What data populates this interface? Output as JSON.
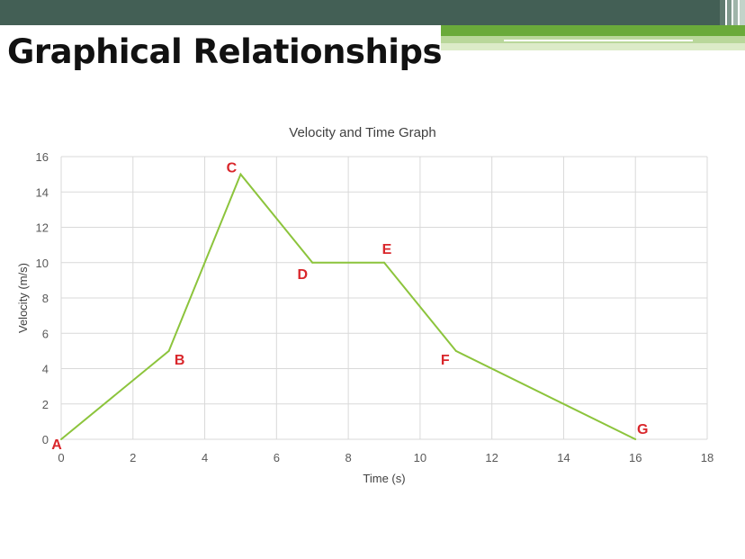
{
  "slide": {
    "title": "Graphical Relationships",
    "colors": {
      "band_dark": "#435f55",
      "band_green": "#6aaa3a",
      "band_light": "#b9d79a",
      "band_pale": "#dcebc8"
    }
  },
  "chart_data": {
    "type": "line",
    "title": "Velocity and Time Graph",
    "xlabel": "Time (s)",
    "ylabel": "Velocity (m/s)",
    "xlim": [
      0,
      18
    ],
    "ylim": [
      0,
      16
    ],
    "xticks": [
      0,
      2,
      4,
      6,
      8,
      10,
      12,
      14,
      16,
      18
    ],
    "yticks": [
      0,
      2,
      4,
      6,
      8,
      10,
      12,
      14,
      16
    ],
    "grid": true,
    "line_color": "#8cc43c",
    "label_color": "#d9262b",
    "series": [
      {
        "x": [
          0,
          3,
          5,
          7,
          9,
          11,
          16
        ],
        "y": [
          0,
          5,
          15,
          10,
          10,
          5,
          0
        ]
      }
    ],
    "point_labels": [
      {
        "text": "A",
        "x": 0,
        "y": 0
      },
      {
        "text": "B",
        "x": 3,
        "y": 5
      },
      {
        "text": "C",
        "x": 5,
        "y": 15
      },
      {
        "text": "D",
        "x": 7,
        "y": 10
      },
      {
        "text": "E",
        "x": 9,
        "y": 10
      },
      {
        "text": "F",
        "x": 11,
        "y": 5
      },
      {
        "text": "G",
        "x": 16,
        "y": 0
      }
    ]
  }
}
